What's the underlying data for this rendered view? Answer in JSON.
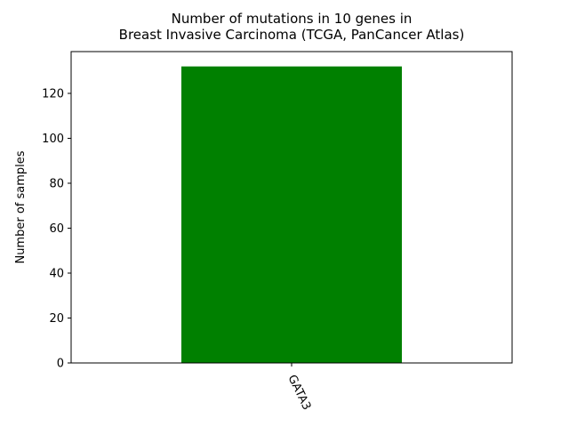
{
  "chart_data": {
    "type": "bar",
    "title_line1": "Number of mutations in 10 genes in",
    "title_line2": "Breast Invasive Carcinoma (TCGA, PanCancer Atlas)",
    "xlabel": "",
    "ylabel": "Number of samples",
    "categories": [
      "GATA3"
    ],
    "values": [
      132
    ],
    "ylim": [
      0,
      138.6
    ],
    "yticks": [
      0,
      20,
      40,
      60,
      80,
      100,
      120
    ],
    "bar_color": "#008000",
    "grid": false,
    "legend": false
  }
}
